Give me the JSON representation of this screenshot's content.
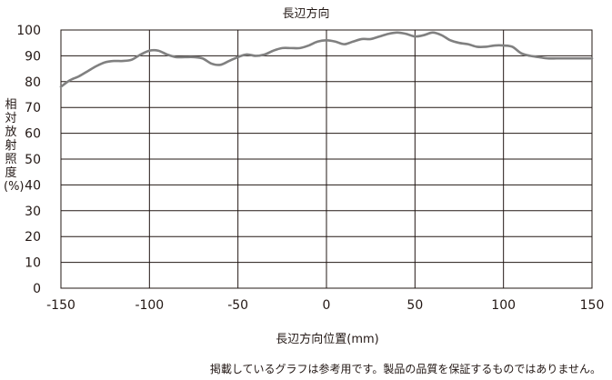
{
  "chart_data": {
    "type": "line",
    "title": "長辺方向",
    "xlabel": "長辺方向位置(mm)",
    "ylabel": "相対放射照度(%)",
    "xlim": [
      -150,
      150
    ],
    "ylim": [
      0,
      100
    ],
    "x_ticks": [
      -150,
      -100,
      -50,
      0,
      50,
      100,
      150
    ],
    "y_ticks": [
      0,
      10,
      20,
      30,
      40,
      50,
      60,
      70,
      80,
      90,
      100
    ],
    "grid": true,
    "line_color": "#808080",
    "series": [
      {
        "x": [
          -150,
          -145,
          -140,
          -135,
          -130,
          -125,
          -120,
          -115,
          -110,
          -105,
          -100,
          -95,
          -90,
          -85,
          -80,
          -75,
          -70,
          -65,
          -60,
          -55,
          -50,
          -45,
          -40,
          -35,
          -30,
          -25,
          -20,
          -15,
          -10,
          -5,
          0,
          5,
          10,
          15,
          20,
          25,
          30,
          35,
          40,
          45,
          50,
          55,
          60,
          65,
          70,
          75,
          80,
          85,
          90,
          95,
          100,
          105,
          110,
          115,
          120,
          125,
          130,
          135,
          140,
          145,
          150
        ],
        "y": [
          78,
          80.5,
          82,
          84,
          86,
          87.5,
          88,
          88,
          88.5,
          90.5,
          92,
          92,
          90.5,
          89.5,
          89.5,
          89.5,
          89,
          87,
          86.5,
          88,
          89.5,
          90.5,
          90,
          90.5,
          92,
          93,
          93,
          93,
          94,
          95.5,
          96,
          95.5,
          94.5,
          95.5,
          96.5,
          96.5,
          97.5,
          98.5,
          99,
          98.5,
          97.5,
          98,
          99,
          98,
          96,
          95,
          94.5,
          93.5,
          93.5,
          94,
          94,
          93.5,
          91,
          90,
          89.5,
          89,
          89,
          89,
          89,
          89,
          89
        ]
      }
    ]
  },
  "disclaimer": "掲載しているグラフは参考用です。製品の品質を保証するものではありません。"
}
